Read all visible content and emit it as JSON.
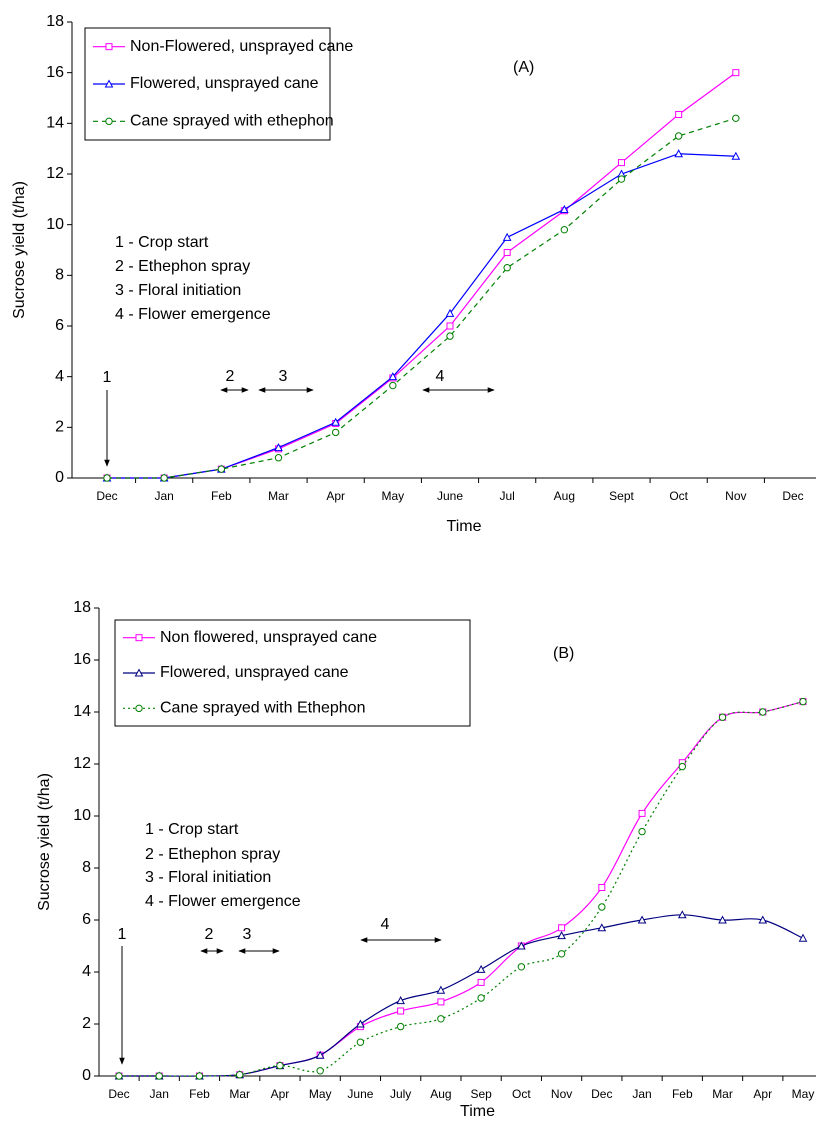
{
  "chart_data": [
    {
      "type": "line",
      "x_label": "Time",
      "y_label": "Sucrose yield (t/ha)",
      "categories": [
        "Dec",
        "Jan",
        "Feb",
        "Mar",
        "Apr",
        "May",
        "June",
        "Jul",
        "Aug",
        "Sept",
        "Oct",
        "Nov",
        "Dec"
      ],
      "ylim": [
        0,
        18
      ],
      "yticks": [
        0,
        2,
        4,
        6,
        8,
        10,
        12,
        14,
        16,
        18
      ],
      "grid": false,
      "smooth": false,
      "legend": "upper left",
      "series": [
        {
          "name": "Non-Flowered, unsprayed cane",
          "color": "#ff00ff",
          "marker": "square",
          "line_style": "solid",
          "values": [
            0,
            0,
            0.35,
            1.15,
            2.15,
            3.95,
            6.0,
            8.9,
            10.55,
            12.45,
            14.35,
            16.0,
            null
          ]
        },
        {
          "name": "Flowered, unsprayed cane",
          "color": "#0000ff",
          "marker": "triangle",
          "line_style": "solid",
          "values": [
            0,
            0,
            0.35,
            1.2,
            2.2,
            4.0,
            6.5,
            9.5,
            10.6,
            12.0,
            12.8,
            12.7,
            null
          ]
        },
        {
          "name": "Cane sprayed with ethephon",
          "color": "#008000",
          "marker": "circle",
          "line_style": "dashed",
          "values": [
            0,
            0,
            0.35,
            0.8,
            1.8,
            3.65,
            5.6,
            8.3,
            9.8,
            11.8,
            13.5,
            14.2,
            null
          ]
        }
      ],
      "annotations": [
        "(A)",
        "1 - Crop start",
        "2 - Ethephon spray",
        "3 - Floral initiation",
        "4 - Flower emergence",
        "1",
        "2",
        "3",
        "4"
      ]
    },
    {
      "type": "line",
      "x_label": "Time",
      "y_label": "Sucrose yield (t/ha)",
      "categories": [
        "Dec",
        "Jan",
        "Feb",
        "Mar",
        "Apr",
        "May",
        "June",
        "July",
        "Aug",
        "Sep",
        "Oct",
        "Nov",
        "Dec",
        "Jan",
        "Feb",
        "Mar",
        "Apr",
        "May"
      ],
      "ylim": [
        0,
        18
      ],
      "yticks": [
        0,
        2,
        4,
        6,
        8,
        10,
        12,
        14,
        16,
        18
      ],
      "grid": false,
      "smooth": true,
      "legend": "upper left",
      "series": [
        {
          "name": "Non flowered, unsprayed cane",
          "color": "#ff00ff",
          "marker": "square",
          "line_style": "solid",
          "values": [
            0,
            0,
            0,
            0.05,
            0.4,
            0.8,
            1.9,
            2.5,
            2.85,
            3.6,
            5.0,
            5.7,
            7.25,
            10.1,
            12.05,
            13.8,
            14.0,
            14.4
          ]
        },
        {
          "name": "Flowered, unsprayed cane",
          "color": "#000080",
          "marker": "triangle",
          "line_style": "solid",
          "values": [
            0,
            0,
            0,
            0.05,
            0.4,
            0.8,
            2.0,
            2.9,
            3.3,
            4.1,
            5.0,
            5.4,
            5.7,
            6.0,
            6.2,
            6.0,
            6.0,
            5.3
          ]
        },
        {
          "name": "Cane sprayed with Ethephon",
          "color": "#008000",
          "marker": "circle",
          "line_style": "dotted",
          "values": [
            0,
            0,
            0,
            0.05,
            0.4,
            0.2,
            1.3,
            1.9,
            2.2,
            3.0,
            4.2,
            4.7,
            6.5,
            9.4,
            11.9,
            13.8,
            14.0,
            14.4
          ]
        }
      ],
      "annotations": [
        "(B)",
        "1 - Crop start",
        "2 - Ethephon spray",
        "3 - Floral initiation",
        "4 - Flower emergence",
        "1",
        "2",
        "3",
        "4"
      ]
    }
  ]
}
